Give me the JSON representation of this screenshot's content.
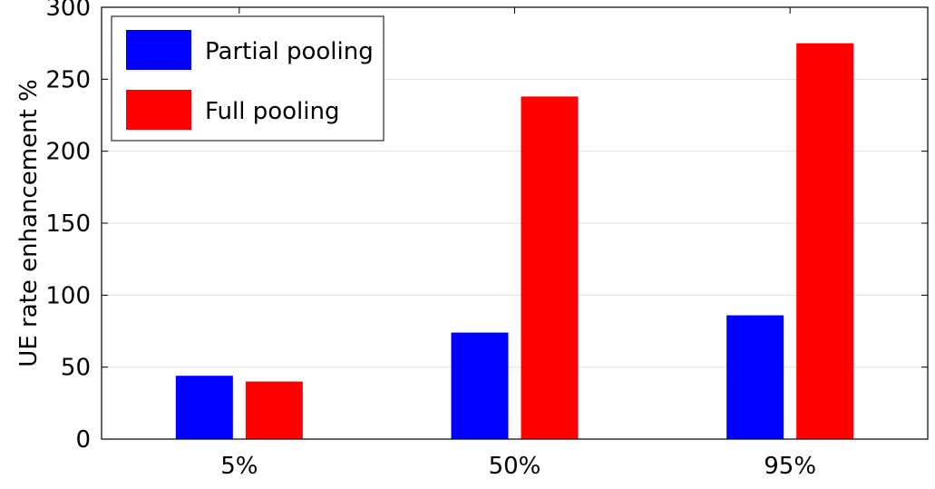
{
  "chart_data": {
    "type": "bar",
    "ylabel": "UE rate enhancement %",
    "xlabel": "",
    "categories": [
      "5%",
      "50%",
      "95%"
    ],
    "ylim": [
      0,
      300
    ],
    "yticks": [
      0,
      50,
      100,
      150,
      200,
      250,
      300
    ],
    "grid": true,
    "legend_position": "top-left",
    "series": [
      {
        "name": "Partial pooling",
        "color": "#0000ff",
        "values": [
          44,
          74,
          86
        ]
      },
      {
        "name": "Full pooling",
        "color": "#ff0000",
        "values": [
          40,
          238,
          275
        ]
      }
    ]
  }
}
